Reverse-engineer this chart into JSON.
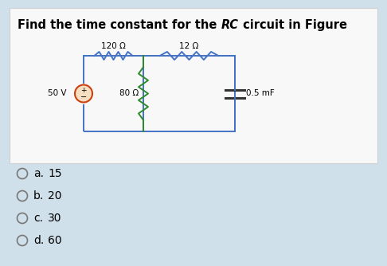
{
  "title_prefix": "Find the time constant for the ",
  "title_italic": "RC",
  "title_suffix": " circuit in Figure",
  "bg_outer": "#cfe0ea",
  "bg_inner": "#f8f8f8",
  "options": [
    {
      "label": "a.",
      "value": "15"
    },
    {
      "label": "b.",
      "value": "20"
    },
    {
      "label": "c.",
      "value": "30"
    },
    {
      "label": "d.",
      "value": "60"
    }
  ],
  "circuit": {
    "resistor1_label": "120 Ω",
    "resistor2_label": "12 Ω",
    "resistor3_label": "80 Ω",
    "capacitor_label": "0.5 mF",
    "source_label": "50 V",
    "wire_color": "#4472c4",
    "resistor3_color": "#2e8b2e",
    "source_fill": "#f5dfc0",
    "source_edge": "#cc4010"
  },
  "font_size_title": 10.5,
  "font_size_options": 10,
  "font_size_circuit": 7.5
}
